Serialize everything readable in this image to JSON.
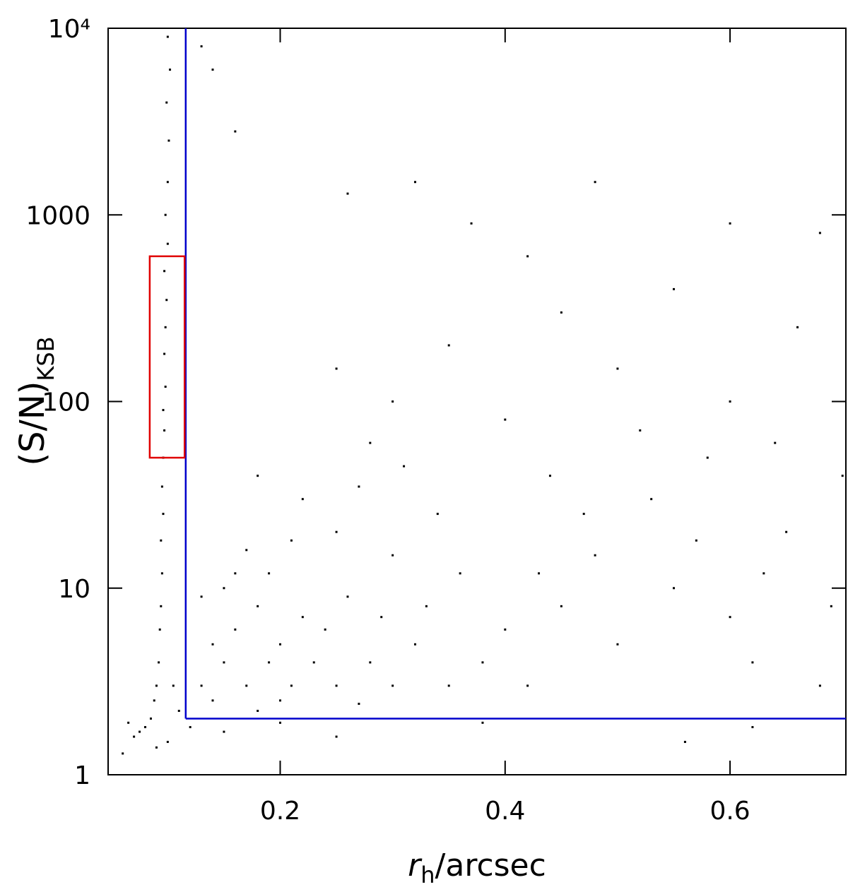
{
  "chart_data": {
    "type": "scatter",
    "xlabel": {
      "main": "r",
      "sub": "h",
      "rest": "/arcsec"
    },
    "ylabel": {
      "main": "(S/N)",
      "sub": "KSB"
    },
    "xlim": [
      0.047,
      0.703
    ],
    "xticks": [
      0.2,
      0.4,
      0.6
    ],
    "ylim": [
      1,
      10000
    ],
    "ylog": true,
    "yticks": [
      1,
      10,
      100,
      1000,
      {
        "value": 10000,
        "label": "10⁴"
      }
    ],
    "color": "#000000",
    "vline": {
      "x": 0.116,
      "color": "#0000cc"
    },
    "hline": {
      "y": 2,
      "color": "#0000cc"
    },
    "box": {
      "x": [
        0.084,
        0.115
      ],
      "y": [
        50,
        600
      ],
      "color": "#e00000"
    },
    "x": [
      0.1,
      0.102,
      0.099,
      0.101,
      0.1,
      0.098,
      0.1,
      0.097,
      0.099,
      0.098,
      0.097,
      0.098,
      0.096,
      0.097,
      0.096,
      0.095,
      0.096,
      0.094,
      0.095,
      0.094,
      0.093,
      0.092,
      0.09,
      0.088,
      0.085,
      0.08,
      0.075,
      0.07,
      0.065,
      0.105,
      0.11,
      0.1,
      0.09,
      0.06,
      0.13,
      0.14,
      0.15,
      0.16,
      0.17,
      0.18,
      0.19,
      0.2,
      0.21,
      0.22,
      0.14,
      0.15,
      0.16,
      0.18,
      0.2,
      0.23,
      0.25,
      0.24,
      0.26,
      0.28,
      0.3,
      0.27,
      0.32,
      0.35,
      0.33,
      0.38,
      0.4,
      0.36,
      0.3,
      0.25,
      0.22,
      0.18,
      0.28,
      0.34,
      0.42,
      0.45,
      0.5,
      0.48,
      0.55,
      0.6,
      0.62,
      0.65,
      0.68,
      0.53,
      0.58,
      0.44,
      0.4,
      0.3,
      0.25,
      0.35,
      0.45,
      0.5,
      0.6,
      0.55,
      0.66,
      0.42,
      0.37,
      0.26,
      0.48,
      0.32,
      0.16,
      0.14,
      0.13,
      0.6,
      0.68,
      0.52,
      0.64,
      0.7,
      0.12,
      0.15,
      0.2,
      0.25,
      0.38,
      0.56,
      0.62,
      0.19,
      0.21,
      0.27,
      0.31,
      0.17,
      0.13,
      0.29,
      0.43,
      0.47,
      0.57,
      0.63,
      0.69
    ],
    "y": [
      9000,
      6000,
      4000,
      2500,
      1500,
      1000,
      700,
      500,
      350,
      250,
      180,
      120,
      90,
      70,
      50,
      35,
      25,
      18,
      12,
      8,
      6,
      4,
      3,
      2.5,
      2,
      1.8,
      1.7,
      1.6,
      1.9,
      3,
      2.2,
      1.5,
      1.4,
      1.3,
      3,
      5,
      4,
      6,
      3,
      8,
      4,
      5,
      3,
      7,
      2.5,
      10,
      12,
      2.2,
      2.5,
      4,
      3,
      6,
      9,
      4,
      3,
      2.4,
      5,
      3,
      8,
      4,
      6,
      12,
      15,
      20,
      30,
      40,
      60,
      25,
      3,
      8,
      5,
      15,
      10,
      7,
      4,
      20,
      3,
      30,
      50,
      40,
      80,
      100,
      150,
      200,
      300,
      150,
      100,
      400,
      250,
      600,
      900,
      1300,
      1500,
      1500,
      2800,
      6000,
      8000,
      900,
      800,
      70,
      60,
      40,
      1.8,
      1.7,
      1.9,
      1.6,
      1.9,
      1.5,
      1.8,
      12,
      18,
      35,
      45,
      16,
      9,
      7,
      12,
      25,
      18,
      12,
      8
    ]
  }
}
